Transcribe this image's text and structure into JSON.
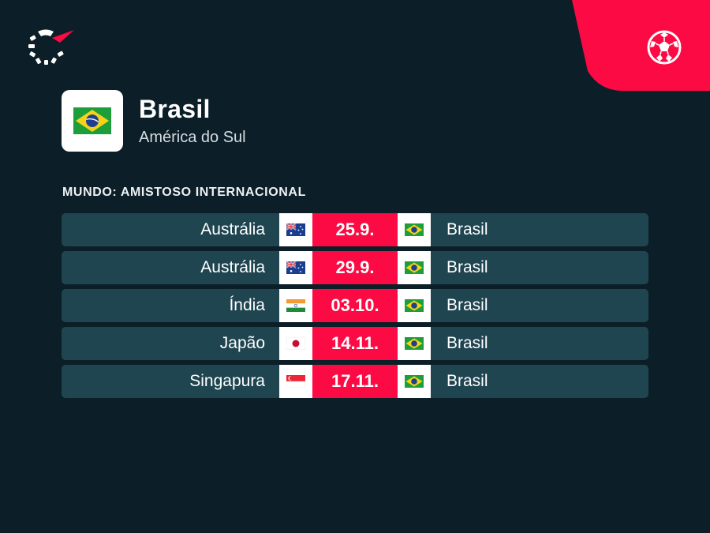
{
  "colors": {
    "background": "#0c1e27",
    "accent": "#fc0a43",
    "row": "#1f4551"
  },
  "header": {
    "logo_icon": "flashscore-logo-icon",
    "sport_icon": "football-icon"
  },
  "team": {
    "name": "Brasil",
    "region": "América do Sul",
    "flag_icon": "brazil-flag-icon"
  },
  "competition": "MUNDO: AMISTOSO INTERNACIONAL",
  "matches": [
    {
      "home": "Austrália",
      "home_flag": "australia-flag-icon",
      "date": "25.9.",
      "away": "Brasil",
      "away_flag": "brazil-flag-icon"
    },
    {
      "home": "Austrália",
      "home_flag": "australia-flag-icon",
      "date": "29.9.",
      "away": "Brasil",
      "away_flag": "brazil-flag-icon"
    },
    {
      "home": "Índia",
      "home_flag": "india-flag-icon",
      "date": "03.10.",
      "away": "Brasil",
      "away_flag": "brazil-flag-icon"
    },
    {
      "home": "Japão",
      "home_flag": "japan-flag-icon",
      "date": "14.11.",
      "away": "Brasil",
      "away_flag": "brazil-flag-icon"
    },
    {
      "home": "Singapura",
      "home_flag": "singapore-flag-icon",
      "date": "17.11.",
      "away": "Brasil",
      "away_flag": "brazil-flag-icon"
    }
  ]
}
